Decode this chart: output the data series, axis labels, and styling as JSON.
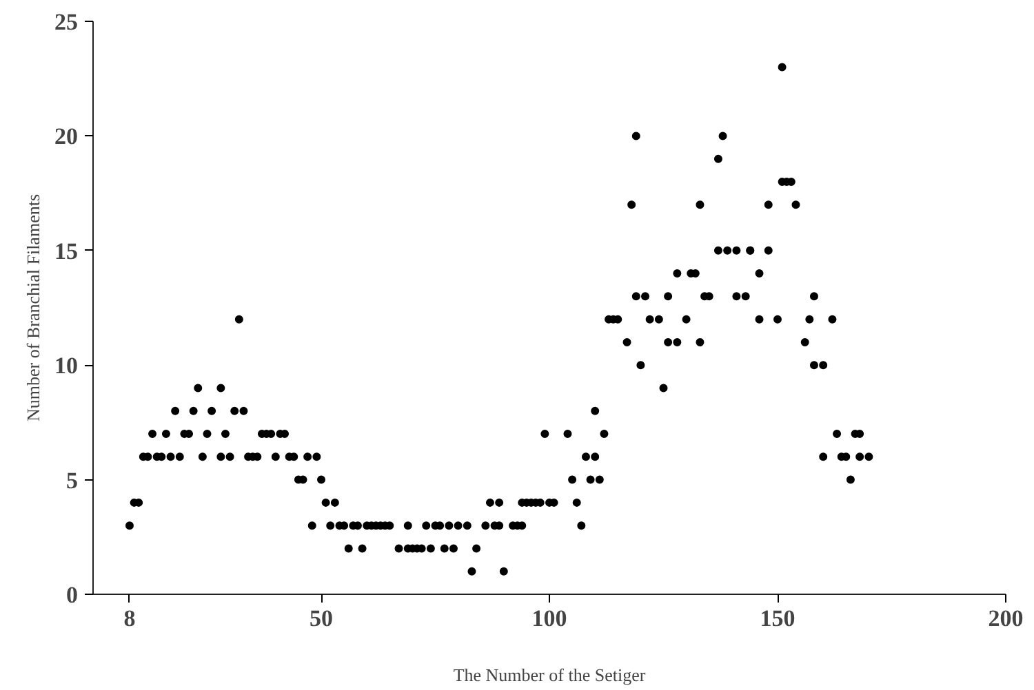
{
  "chart_data": {
    "type": "scatter",
    "xlabel": "The Number of the Setiger",
    "ylabel": "Number of Branchial Filaments",
    "xlim": [
      0,
      200
    ],
    "xticks": [
      8,
      50,
      100,
      150,
      200
    ],
    "ylim": [
      0,
      25
    ],
    "yticks": [
      0,
      5,
      10,
      15,
      20,
      25
    ],
    "grid": false,
    "marker": "circle",
    "series": [
      {
        "color": "#000000",
        "x": [
          8,
          9,
          10,
          11,
          12,
          13,
          14,
          15,
          16,
          17,
          18,
          19,
          20,
          21,
          22,
          23,
          24,
          25,
          26,
          28,
          28,
          29,
          30,
          31,
          32,
          33,
          34,
          35,
          36,
          37,
          38,
          39,
          40,
          41,
          42,
          43,
          44,
          45,
          46,
          47,
          48,
          49,
          50,
          51,
          52,
          53,
          54,
          55,
          56,
          57,
          58,
          59,
          60,
          61,
          62,
          63,
          64,
          65,
          67,
          69,
          69,
          70,
          71,
          72,
          73,
          74,
          75,
          76,
          77,
          78,
          79,
          80,
          82,
          83,
          84,
          86,
          87,
          88,
          89,
          89,
          90,
          92,
          93,
          94,
          94,
          95,
          96,
          97,
          98,
          99,
          100,
          101,
          104,
          105,
          106,
          107,
          108,
          109,
          110,
          110,
          111,
          112,
          113,
          114,
          115,
          117,
          118,
          119,
          119,
          120,
          121,
          122,
          124,
          125,
          126,
          126,
          128,
          128,
          130,
          131,
          132,
          133,
          133,
          134,
          135,
          137,
          137,
          138,
          139,
          141,
          141,
          143,
          144,
          144,
          146,
          146,
          148,
          148,
          150,
          151,
          151,
          152,
          153,
          154,
          156,
          157,
          158,
          158,
          160,
          160,
          162,
          163,
          164,
          165,
          166,
          167,
          168,
          168,
          170
        ],
        "values": [
          3,
          4,
          4,
          6,
          6,
          7,
          6,
          6,
          7,
          6,
          8,
          6,
          7,
          7,
          8,
          9,
          6,
          7,
          8,
          6,
          9,
          7,
          6,
          8,
          12,
          8,
          6,
          6,
          6,
          7,
          7,
          7,
          6,
          7,
          7,
          6,
          6,
          5,
          5,
          6,
          3,
          6,
          5,
          4,
          3,
          4,
          3,
          3,
          2,
          3,
          3,
          2,
          3,
          3,
          3,
          3,
          3,
          3,
          2,
          3,
          2,
          2,
          2,
          2,
          3,
          2,
          3,
          3,
          2,
          3,
          2,
          3,
          3,
          1,
          2,
          3,
          4,
          3,
          4,
          3,
          1,
          3,
          3,
          3,
          4,
          4,
          4,
          4,
          4,
          7,
          4,
          4,
          7,
          5,
          4,
          3,
          6,
          5,
          6,
          8,
          5,
          7,
          12,
          12,
          12,
          11,
          17,
          13,
          20,
          10,
          13,
          12,
          12,
          9,
          13,
          11,
          11,
          14,
          12,
          14,
          14,
          17,
          11,
          13,
          13,
          15,
          19,
          20,
          15,
          13,
          15,
          13,
          15,
          15,
          12,
          14,
          15,
          17,
          12,
          18,
          23,
          18,
          18,
          17,
          11,
          12,
          10,
          13,
          10,
          6,
          12,
          7,
          6,
          6,
          5,
          7,
          7,
          6,
          6
        ]
      }
    ]
  }
}
